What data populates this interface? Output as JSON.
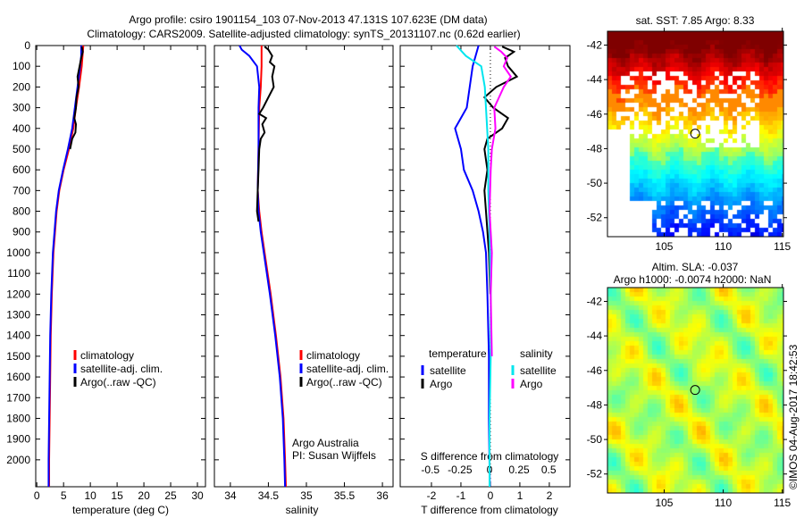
{
  "title_line1": "Argo profile: csiro 1901154_103 07-Nov-2013 47.131S 107.623E (DM data)",
  "title_line2": "Climatology: CARS2009. Satellite-adjusted climatology: synTS_20131107.nc (0.62d earlier)",
  "colors": {
    "climatology": "#ff0000",
    "satellite": "#0000ff",
    "argo": "#000000",
    "sal_satellite": "#00e5ee",
    "sal_argo": "#ff00ff"
  },
  "chart_data": [
    {
      "type": "line",
      "name": "temperature-profile",
      "xlabel": "temperature (deg C)",
      "ylabel": "depth",
      "xlim": [
        -0.2,
        31.5
      ],
      "ylim": [
        2130,
        0
      ],
      "xticks": [
        0,
        5,
        10,
        15,
        20,
        25,
        30
      ],
      "yticks": [
        0,
        100,
        200,
        300,
        400,
        500,
        600,
        700,
        800,
        900,
        1000,
        1100,
        1200,
        1300,
        1400,
        1500,
        1600,
        1700,
        1800,
        1900,
        2000
      ],
      "legend": [
        "climatology",
        "satellite-adj. clim.",
        "Argo(..raw -QC)"
      ],
      "series": [
        {
          "name": "climatology",
          "color": "#ff0000",
          "depth": [
            0,
            100,
            200,
            300,
            400,
            500,
            600,
            700,
            800,
            1000,
            1200,
            1400,
            1600,
            1800,
            2000,
            2130
          ],
          "values": [
            8.7,
            8.4,
            7.9,
            7.3,
            6.8,
            6.0,
            5.0,
            4.2,
            3.7,
            3.1,
            2.8,
            2.6,
            2.5,
            2.4,
            2.3,
            2.3
          ]
        },
        {
          "name": "satellite-adj. clim.",
          "color": "#0000ff",
          "depth": [
            0,
            50,
            100,
            200,
            300,
            400,
            500,
            600,
            700,
            800,
            1000,
            1200,
            1400,
            1600,
            1800,
            2000,
            2130
          ],
          "values": [
            8.3,
            8.3,
            8.1,
            7.6,
            7.1,
            6.6,
            5.8,
            4.9,
            4.1,
            3.6,
            3.0,
            2.7,
            2.5,
            2.4,
            2.3,
            2.2,
            2.2
          ]
        },
        {
          "name": "Argo",
          "color": "#000000",
          "depth": [
            5,
            30,
            60,
            100,
            150,
            200,
            250,
            300,
            350,
            380,
            420,
            450,
            500
          ],
          "values": [
            8.4,
            8.6,
            8.3,
            8.0,
            7.6,
            7.8,
            7.4,
            7.3,
            7.0,
            7.3,
            7.2,
            6.6,
            6.2
          ]
        }
      ]
    },
    {
      "type": "line",
      "name": "salinity-profile",
      "xlabel": "salinity",
      "ylabel": "depth",
      "xlim": [
        33.79,
        36.14
      ],
      "ylim": [
        2130,
        0
      ],
      "xticks": [
        34,
        34.5,
        35,
        35.5,
        36
      ],
      "legend": [
        "climatology",
        "satellite-adj. clim.",
        "Argo(..raw -QC)"
      ],
      "annotations": [
        "Argo Australia",
        "PI: Susan Wijffels"
      ],
      "series": [
        {
          "name": "climatology",
          "color": "#ff0000",
          "depth": [
            0,
            100,
            200,
            300,
            500,
            700,
            800,
            900,
            1000,
            1200,
            1400,
            1600,
            1800,
            2000,
            2130
          ],
          "values": [
            34.41,
            34.41,
            34.4,
            34.38,
            34.37,
            34.36,
            34.38,
            34.41,
            34.45,
            34.53,
            34.6,
            34.66,
            34.7,
            34.72,
            34.73
          ]
        },
        {
          "name": "satellite-adj. clim.",
          "color": "#0000ff",
          "depth": [
            0,
            20,
            50,
            100,
            200,
            300,
            500,
            700,
            800,
            900,
            1000,
            1200,
            1400,
            1600,
            1800,
            2000,
            2130
          ],
          "values": [
            34.12,
            34.15,
            34.25,
            34.35,
            34.38,
            34.37,
            34.37,
            34.36,
            34.37,
            34.4,
            34.44,
            34.52,
            34.59,
            34.65,
            34.69,
            34.71,
            34.72
          ]
        },
        {
          "name": "Argo",
          "color": "#000000",
          "depth": [
            5,
            20,
            50,
            80,
            100,
            150,
            200,
            250,
            300,
            330,
            350,
            380,
            420,
            450,
            500,
            600,
            700,
            800,
            850
          ],
          "values": [
            34.45,
            34.5,
            34.55,
            34.52,
            34.58,
            34.55,
            34.57,
            34.5,
            34.43,
            34.38,
            34.47,
            34.42,
            34.45,
            34.4,
            34.38,
            34.37,
            34.36,
            34.35,
            34.37
          ]
        }
      ]
    },
    {
      "type": "line",
      "name": "difference-profile",
      "xlabel": "T difference from climatology",
      "x2label": "S difference from climatology",
      "xlim": [
        -3.06,
        2.7
      ],
      "x2lim": [
        -0.755,
        0.68
      ],
      "ylim": [
        2130,
        0
      ],
      "xticks": [
        -2,
        -1,
        0,
        1,
        2
      ],
      "x2ticks": [
        -0.5,
        -0.25,
        0,
        0.25,
        0.5
      ],
      "x2ticklabels": [
        "-0.5",
        "-0.25",
        "0",
        "0.25",
        "0.5"
      ],
      "legend_temperature": {
        "title": "temperature",
        "items": [
          "satellite",
          "Argo"
        ]
      },
      "legend_salinity": {
        "title": "salinity",
        "items": [
          "satellite",
          "Argo"
        ]
      },
      "series": [
        {
          "name": "T satellite",
          "color": "#0000ff",
          "axis": "T",
          "depth": [
            0,
            50,
            100,
            200,
            300,
            400,
            500,
            600,
            700,
            800,
            900,
            1000,
            1200,
            1500,
            1800,
            2130
          ],
          "values": [
            -0.4,
            -0.5,
            -0.6,
            -0.7,
            -0.8,
            -1.2,
            -1.0,
            -0.9,
            -0.6,
            -0.4,
            -0.25,
            -0.15,
            -0.1,
            -0.05,
            -0.05,
            -0.02
          ]
        },
        {
          "name": "T Argo",
          "color": "#000000",
          "axis": "T",
          "depth": [
            5,
            30,
            60,
            100,
            150,
            200,
            250,
            300,
            350,
            400,
            450,
            500,
            600,
            700,
            800,
            1000,
            1200
          ],
          "values": [
            0.4,
            0.8,
            0.5,
            0.6,
            0.9,
            0.2,
            -0.2,
            0.1,
            0.6,
            0.4,
            -0.1,
            -0.2,
            -0.1,
            -0.2,
            -0.15,
            -0.05,
            0
          ]
        },
        {
          "name": "S satellite",
          "color": "#00e5ee",
          "axis": "S",
          "depth": [
            0,
            50,
            100,
            200,
            300,
            400,
            500,
            700,
            900,
            1200,
            1500,
            1800,
            2130
          ],
          "values": [
            -0.28,
            -0.2,
            -0.07,
            -0.04,
            -0.03,
            -0.02,
            -0.01,
            -0.01,
            0.0,
            0.01,
            0.01,
            0.0,
            0.0
          ]
        },
        {
          "name": "S Argo",
          "color": "#ff00ff",
          "axis": "S",
          "depth": [
            5,
            30,
            60,
            100,
            150,
            200,
            250,
            300,
            400,
            500,
            600,
            800,
            1000,
            1200,
            1500
          ],
          "values": [
            0.04,
            0.1,
            0.15,
            0.12,
            0.18,
            0.12,
            0.08,
            0.04,
            0.05,
            0.02,
            0.01,
            0.0,
            0.02,
            0.01,
            0.02
          ]
        }
      ]
    },
    {
      "type": "heatmap",
      "name": "sst-map",
      "title": "sat. SST: 7.85 Argo: 8.33",
      "xlim": [
        100.2,
        115.1
      ],
      "ylim": [
        -53.1,
        -41.2
      ],
      "xticks": [
        105,
        110,
        115
      ],
      "yticks": [
        -42,
        -44,
        -46,
        -48,
        -50,
        -52
      ],
      "marker": {
        "lon": 107.623,
        "lat": -47.131
      }
    },
    {
      "type": "heatmap",
      "name": "sla-map",
      "title_line1": "Altim. SLA: -0.037",
      "title_line2": "Argo h1000: -0.0074 h2000: NaN",
      "xlim": [
        100.2,
        115.1
      ],
      "ylim": [
        -53.1,
        -41.2
      ],
      "xticks": [
        105,
        110,
        115
      ],
      "yticks": [
        -42,
        -44,
        -46,
        -48,
        -50,
        -52
      ],
      "marker": {
        "lon": 107.623,
        "lat": -47.131
      }
    }
  ],
  "credit": "©IMOS 04-Aug-2017 18:42:53"
}
